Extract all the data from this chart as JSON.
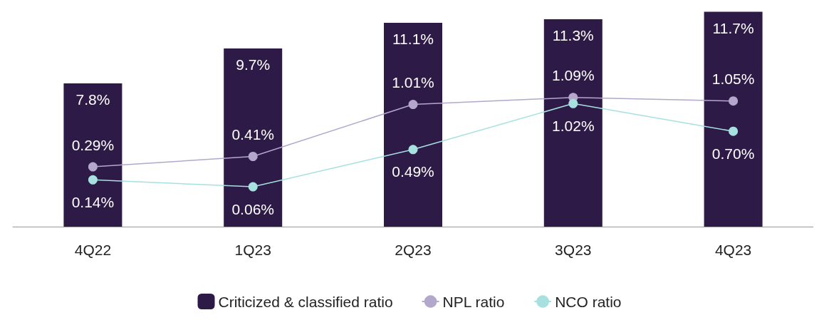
{
  "chart_data": {
    "type": "bar",
    "categories": [
      "4Q22",
      "1Q23",
      "2Q23",
      "3Q23",
      "4Q23"
    ],
    "ylim": [
      0,
      11.8
    ],
    "y2lim": [
      -0.4,
      2.1
    ],
    "series": [
      {
        "name": "Criticized & classified ratio",
        "color": "#2e1a47",
        "values": [
          7.8,
          9.7,
          11.1,
          11.3,
          11.7
        ],
        "value_labels": [
          "7.8%",
          "9.7%",
          "11.1%",
          "11.3%",
          "11.7%"
        ]
      },
      {
        "name": "NPL ratio",
        "type": "line",
        "axis": "y2",
        "color": "#b3a8cc",
        "values": [
          0.29,
          0.41,
          1.01,
          1.09,
          1.05
        ],
        "value_labels": [
          "0.29%",
          "0.41%",
          "1.01%",
          "1.09%",
          "1.05%"
        ]
      },
      {
        "name": "NCO ratio",
        "type": "line",
        "axis": "y2",
        "color": "#a6e1e0",
        "values": [
          0.14,
          0.06,
          0.49,
          1.02,
          0.7
        ],
        "value_labels": [
          "0.14%",
          "0.06%",
          "0.49%",
          "1.02%",
          "0.70%"
        ]
      }
    ],
    "legend": "bottom",
    "grid": false,
    "marker": "circle",
    "line_style": "solid"
  }
}
